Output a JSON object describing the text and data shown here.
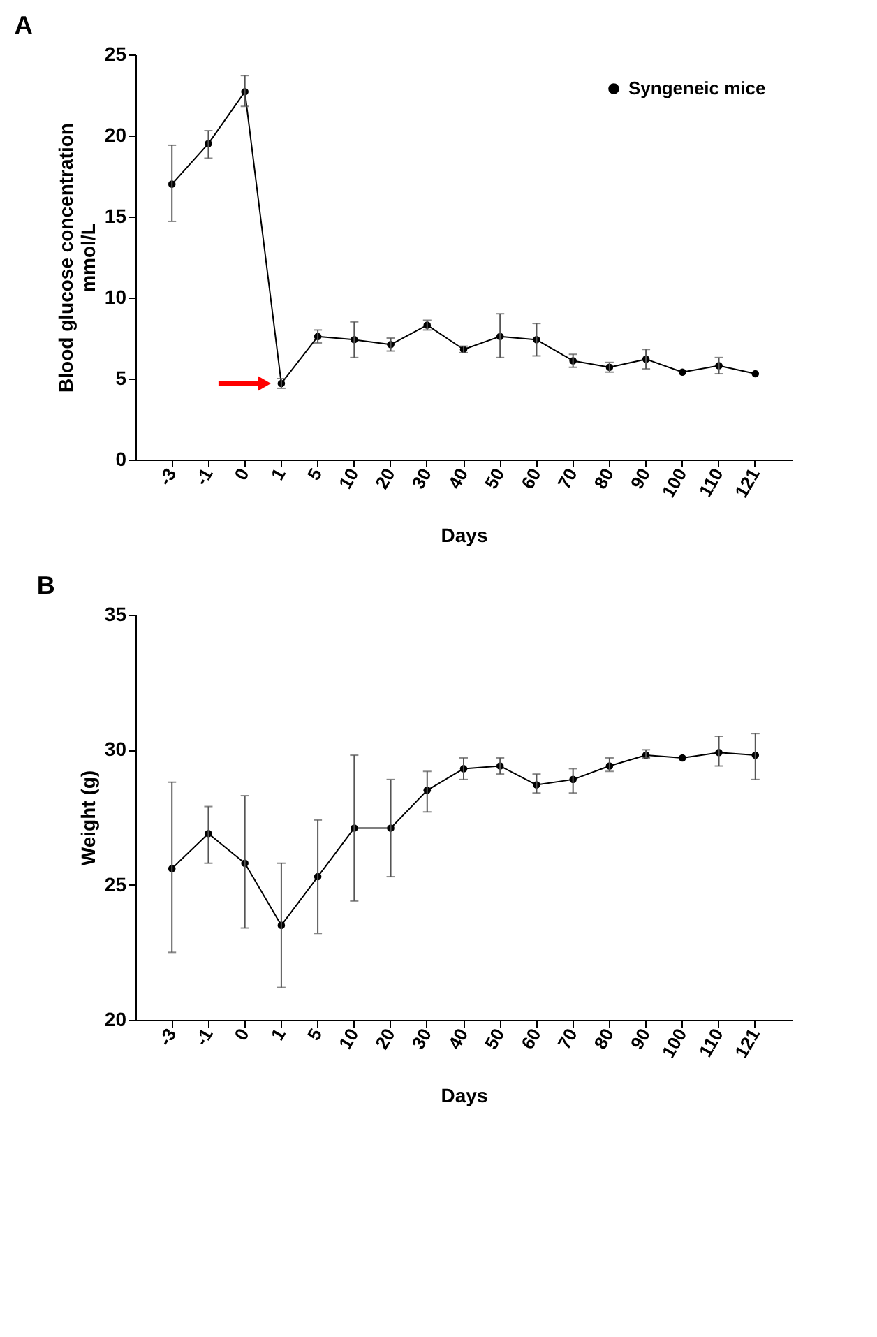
{
  "chart_data": [
    {
      "type": "line",
      "title": "A",
      "xlabel": "Days",
      "ylabel": "Blood glucose concentration\nmmol/L",
      "categories": [
        "-3",
        "-1",
        "0",
        "1",
        "5",
        "10",
        "20",
        "30",
        "40",
        "50",
        "60",
        "70",
        "80",
        "90",
        "100",
        "110",
        "121"
      ],
      "series": [
        {
          "name": "Syngeneic mice",
          "color": "#000000",
          "values": [
            17.0,
            19.5,
            22.7,
            4.7,
            7.6,
            7.4,
            7.1,
            8.3,
            6.8,
            7.6,
            7.4,
            6.1,
            5.7,
            6.2,
            5.4,
            5.8,
            5.3
          ],
          "errors": [
            [
              14.7,
              19.4
            ],
            [
              18.6,
              20.3
            ],
            [
              21.8,
              23.7
            ],
            [
              4.4,
              5.0
            ],
            [
              7.2,
              8.0
            ],
            [
              6.3,
              8.5
            ],
            [
              6.7,
              7.5
            ],
            [
              8.0,
              8.6
            ],
            [
              6.6,
              7.0
            ],
            [
              6.3,
              9.0
            ],
            [
              6.4,
              8.4
            ],
            [
              5.7,
              6.5
            ],
            [
              5.4,
              6.0
            ],
            [
              5.6,
              6.8
            ],
            null,
            [
              5.3,
              6.3
            ],
            null
          ]
        }
      ],
      "ylim": [
        0,
        25
      ],
      "yticks": [
        0,
        5,
        10,
        15,
        20,
        25
      ],
      "grid": false,
      "legend": "top right",
      "marker": "circle",
      "line_style": "solid"
    },
    {
      "type": "line",
      "title": "B",
      "xlabel": "Days",
      "ylabel": "Weight (g)",
      "categories": [
        "-3",
        "-1",
        "0",
        "1",
        "5",
        "10",
        "20",
        "30",
        "40",
        "50",
        "60",
        "70",
        "80",
        "90",
        "100",
        "110",
        "121"
      ],
      "series": [
        {
          "name": "Syngeneic mice",
          "color": "#000000",
          "values": [
            25.6,
            26.9,
            25.8,
            23.5,
            25.3,
            27.1,
            27.1,
            28.5,
            29.3,
            29.4,
            28.7,
            28.9,
            29.4,
            29.8,
            29.7,
            29.9,
            29.8
          ],
          "errors": [
            [
              22.5,
              28.8
            ],
            [
              25.8,
              27.9
            ],
            [
              23.4,
              28.3
            ],
            [
              21.2,
              25.8
            ],
            [
              23.2,
              27.4
            ],
            [
              24.4,
              29.8
            ],
            [
              25.3,
              28.9
            ],
            [
              27.7,
              29.2
            ],
            [
              28.9,
              29.7
            ],
            [
              29.1,
              29.7
            ],
            [
              28.4,
              29.1
            ],
            [
              28.4,
              29.3
            ],
            [
              29.2,
              29.7
            ],
            [
              29.7,
              30.0
            ],
            null,
            [
              29.4,
              30.5
            ],
            [
              28.9,
              30.6
            ]
          ]
        }
      ],
      "ylim": [
        20,
        35
      ],
      "yticks": [
        20,
        25,
        30,
        35
      ],
      "grid": false,
      "legend": "top right",
      "marker": "circle",
      "line_style": "solid"
    }
  ]
}
